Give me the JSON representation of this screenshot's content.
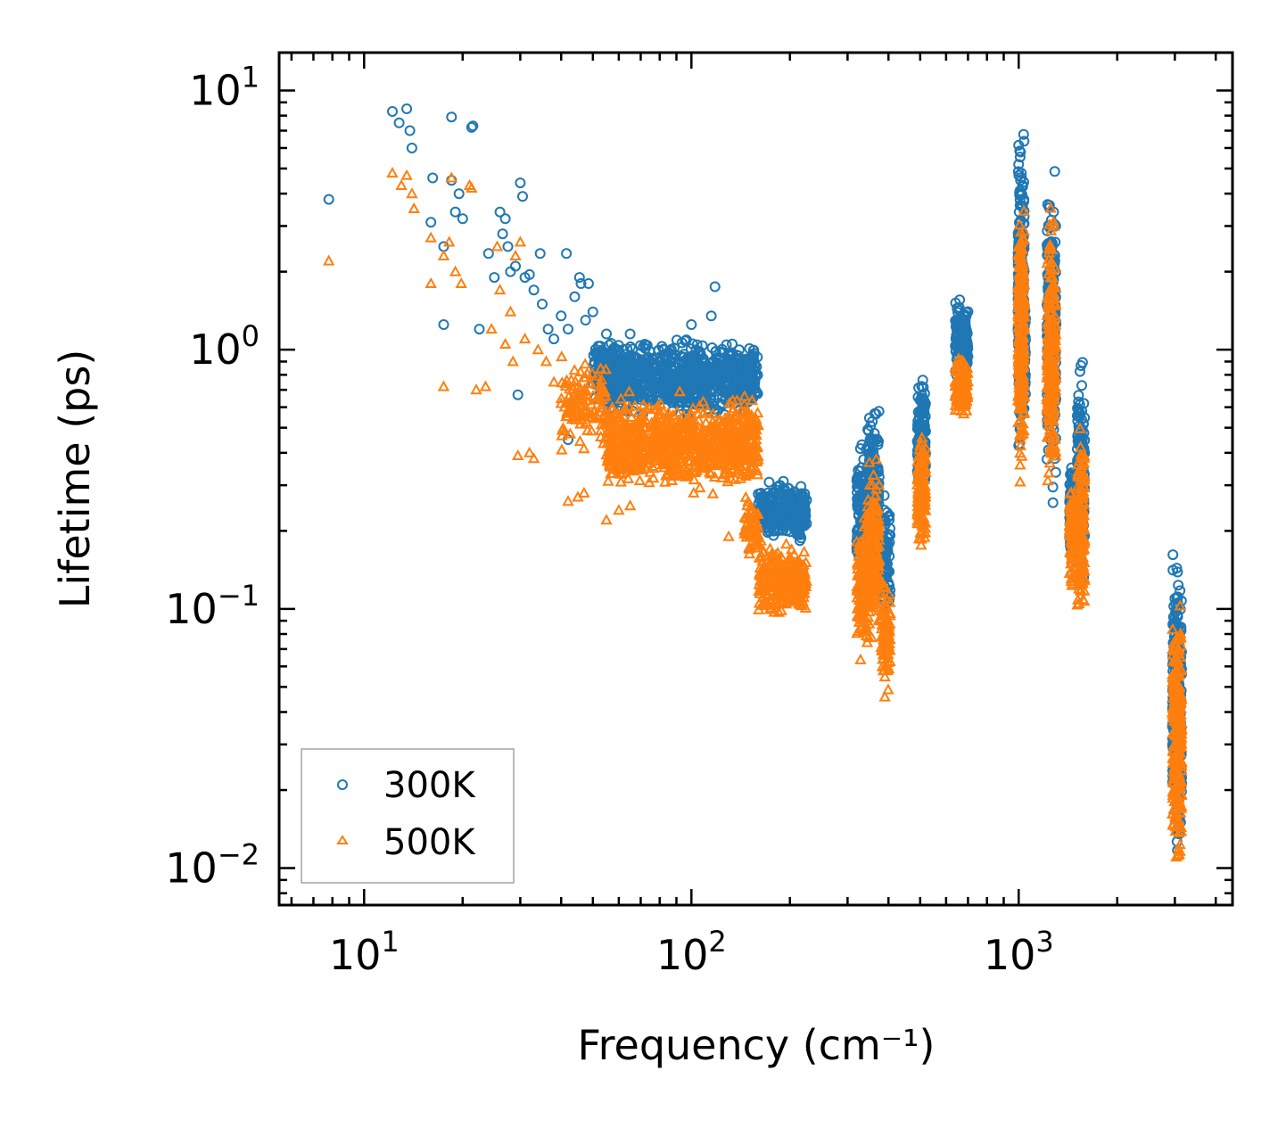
{
  "chart_data": {
    "type": "scatter",
    "title": "",
    "xlabel": "Frequency (cm⁻¹)",
    "ylabel": "Lifetime (ps)",
    "xscale": "log",
    "yscale": "log",
    "xlim": [
      5.5,
      4500
    ],
    "ylim": [
      0.0072,
      14
    ],
    "x_ticks": [
      {
        "value": 10,
        "base": "10",
        "exp": "1"
      },
      {
        "value": 100,
        "base": "10",
        "exp": "2"
      },
      {
        "value": 1000,
        "base": "10",
        "exp": "3"
      }
    ],
    "y_ticks": [
      {
        "value": 0.01,
        "base": "10",
        "exp": "−2"
      },
      {
        "value": 0.1,
        "base": "10",
        "exp": "−1"
      },
      {
        "value": 1,
        "base": "10",
        "exp": "0"
      },
      {
        "value": 10,
        "base": "10",
        "exp": "1"
      }
    ],
    "legend_position": "bottom-left",
    "series": [
      {
        "name": "300K",
        "marker": "circle",
        "color": "#1f77b4",
        "points": [
          [
            7.8,
            3.8
          ],
          [
            12.2,
            8.3
          ],
          [
            12.8,
            7.5
          ],
          [
            13.5,
            8.5
          ],
          [
            13.8,
            7.0
          ],
          [
            14.0,
            6.0
          ],
          [
            16.2,
            4.6
          ],
          [
            16.0,
            3.1
          ],
          [
            17.5,
            2.5
          ],
          [
            17.5,
            1.25
          ],
          [
            18.5,
            7.9
          ],
          [
            18.5,
            4.5
          ],
          [
            19.0,
            3.4
          ],
          [
            19.5,
            4.0
          ],
          [
            20.0,
            3.2
          ],
          [
            21.3,
            7.2
          ],
          [
            21.5,
            7.3
          ],
          [
            22.5,
            1.2
          ],
          [
            24.0,
            2.35
          ],
          [
            25.0,
            1.9
          ],
          [
            26.5,
            2.8
          ],
          [
            26.0,
            3.4
          ],
          [
            27.0,
            3.2
          ],
          [
            27.5,
            2.5
          ],
          [
            28.0,
            2.0
          ],
          [
            29.0,
            2.1
          ],
          [
            29.5,
            0.67
          ],
          [
            30.0,
            4.4
          ],
          [
            30.5,
            3.9
          ],
          [
            31.0,
            1.9
          ],
          [
            32.0,
            1.95
          ],
          [
            33.0,
            1.7
          ],
          [
            34.5,
            2.35
          ],
          [
            35.0,
            1.5
          ],
          [
            36.5,
            1.2
          ],
          [
            38.0,
            1.1
          ],
          [
            40.0,
            1.35
          ],
          [
            41.5,
            2.35
          ],
          [
            42.0,
            1.2
          ],
          [
            44.0,
            1.6
          ],
          [
            45.5,
            1.9
          ],
          [
            46.0,
            1.8
          ],
          [
            47.5,
            1.3
          ],
          [
            48.5,
            1.8
          ],
          [
            50.0,
            1.4
          ],
          [
            55.0,
            1.15
          ],
          [
            58.0,
            1.0
          ],
          [
            65.0,
            1.15
          ],
          [
            100.0,
            1.25
          ],
          [
            115.0,
            1.35
          ],
          [
            118.0,
            1.75
          ],
          [
            140.0,
            1.0
          ],
          [
            42.0,
            0.45
          ]
        ],
        "clusters": [
          {
            "x": [
              50,
              60
            ],
            "y": [
              0.6,
              1.15
            ],
            "n": 120
          },
          {
            "x": [
              55,
              160
            ],
            "y": [
              0.52,
              1.15
            ],
            "n": 900
          },
          {
            "x": [
              160,
              225
            ],
            "y": [
              0.17,
              0.34
            ],
            "n": 260
          },
          {
            "x": [
              320,
              345
            ],
            "y": [
              0.11,
              0.5
            ],
            "n": 120
          },
          {
            "x": [
              345,
              375
            ],
            "y": [
              0.12,
              0.68
            ],
            "n": 160
          },
          {
            "x": [
              380,
              405
            ],
            "y": [
              0.08,
              0.33
            ],
            "n": 90
          },
          {
            "x": [
              490,
              520
            ],
            "y": [
              0.23,
              0.93
            ],
            "n": 130
          },
          {
            "x": [
              640,
              700
            ],
            "y": [
              0.7,
              1.65
            ],
            "n": 150
          },
          {
            "x": [
              995,
              1040
            ],
            "y": [
              0.3,
              9.2
            ],
            "n": 260
          },
          {
            "x": [
              1040,
              1050
            ],
            "y": [
              0.5,
              2.0
            ],
            "n": 30
          },
          {
            "x": [
              1220,
              1300
            ],
            "y": [
              0.2,
              6.8
            ],
            "n": 220
          },
          {
            "x": [
              1430,
              1470
            ],
            "y": [
              0.12,
              0.45
            ],
            "n": 90
          },
          {
            "x": [
              1510,
              1590
            ],
            "y": [
              0.09,
              1.05
            ],
            "n": 180
          },
          {
            "x": [
              2950,
              3150
            ],
            "y": [
              0.0095,
              0.2
            ],
            "n": 280
          }
        ]
      },
      {
        "name": "500K",
        "marker": "triangle",
        "color": "#ff7f0e",
        "points": [
          [
            7.8,
            2.2
          ],
          [
            12.2,
            4.8
          ],
          [
            13.0,
            4.3
          ],
          [
            13.5,
            4.7
          ],
          [
            14.0,
            4.0
          ],
          [
            14.2,
            3.5
          ],
          [
            16.0,
            2.7
          ],
          [
            16.0,
            1.8
          ],
          [
            17.5,
            2.3
          ],
          [
            17.5,
            0.72
          ],
          [
            18.2,
            2.6
          ],
          [
            18.5,
            4.6
          ],
          [
            19.0,
            2.0
          ],
          [
            19.8,
            1.8
          ],
          [
            21.0,
            4.3
          ],
          [
            21.3,
            4.2
          ],
          [
            22.0,
            0.7
          ],
          [
            23.5,
            0.72
          ],
          [
            24.5,
            1.2
          ],
          [
            25.5,
            2.5
          ],
          [
            26.0,
            1.7
          ],
          [
            27.0,
            1.05
          ],
          [
            28.0,
            1.4
          ],
          [
            28.5,
            0.9
          ],
          [
            29.0,
            2.3
          ],
          [
            29.5,
            0.39
          ],
          [
            30.0,
            2.6
          ],
          [
            31.0,
            1.1
          ],
          [
            32.0,
            0.4
          ],
          [
            33.0,
            0.38
          ],
          [
            34.0,
            1.0
          ],
          [
            36.0,
            0.9
          ],
          [
            38.0,
            0.75
          ],
          [
            40.0,
            0.62
          ],
          [
            42.0,
            0.26
          ],
          [
            45.0,
            0.27
          ],
          [
            47.0,
            0.28
          ],
          [
            55.0,
            0.22
          ],
          [
            60.0,
            0.24
          ],
          [
            65.0,
            0.25
          ],
          [
            130.0,
            0.19
          ],
          [
            150.0,
            0.17
          ]
        ],
        "clusters": [
          {
            "x": [
              40,
              55
            ],
            "y": [
              0.38,
              1.0
            ],
            "n": 120
          },
          {
            "x": [
              55,
              160
            ],
            "y": [
              0.27,
              0.7
            ],
            "n": 900
          },
          {
            "x": [
              145,
              160
            ],
            "y": [
              0.15,
              0.3
            ],
            "n": 60
          },
          {
            "x": [
              160,
              225
            ],
            "y": [
              0.09,
              0.19
            ],
            "n": 260
          },
          {
            "x": [
              320,
              345
            ],
            "y": [
              0.055,
              0.27
            ],
            "n": 120
          },
          {
            "x": [
              345,
              375
            ],
            "y": [
              0.06,
              0.42
            ],
            "n": 160
          },
          {
            "x": [
              380,
              405
            ],
            "y": [
              0.043,
              0.14
            ],
            "n": 90
          },
          {
            "x": [
              490,
              520
            ],
            "y": [
              0.15,
              0.55
            ],
            "n": 130
          },
          {
            "x": [
              640,
              700
            ],
            "y": [
              0.53,
              0.98
            ],
            "n": 150
          },
          {
            "x": [
              995,
              1040
            ],
            "y": [
              0.28,
              4.9
            ],
            "n": 260
          },
          {
            "x": [
              1220,
              1300
            ],
            "y": [
              0.22,
              4.2
            ],
            "n": 220
          },
          {
            "x": [
              1430,
              1470
            ],
            "y": [
              0.11,
              0.35
            ],
            "n": 90
          },
          {
            "x": [
              1510,
              1590
            ],
            "y": [
              0.075,
              0.55
            ],
            "n": 180
          },
          {
            "x": [
              2950,
              3150
            ],
            "y": [
              0.0082,
              0.13
            ],
            "n": 280
          }
        ]
      }
    ]
  }
}
